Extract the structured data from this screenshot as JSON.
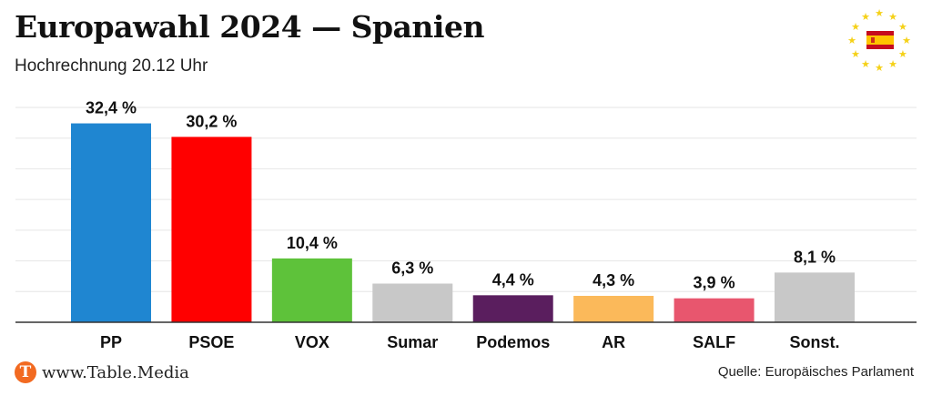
{
  "header": {
    "title": "Europawahl 2024 — Spanien",
    "subtitle": "Hochrechnung 20.12 Uhr"
  },
  "emblem": {
    "icon": "spain-flag-eu-stars-icon"
  },
  "footer": {
    "brand_logo_letter": "T",
    "brand_text": "www.Table.Media",
    "source": "Quelle: Europäisches Parlament"
  },
  "colors": {
    "grid": "#e6e6e6",
    "axis": "#333333",
    "eu_star": "#f5d118",
    "flag_red": "#c60b1e",
    "flag_yellow": "#ffc400",
    "brand": "#f26a21"
  },
  "chart_data": {
    "type": "bar",
    "title": "Europawahl 2024 — Spanien",
    "subtitle": "Hochrechnung 20.12 Uhr",
    "categories": [
      "PP",
      "PSOE",
      "VOX",
      "Sumar",
      "Podemos",
      "AR",
      "SALF",
      "Sonst."
    ],
    "values": [
      32.4,
      30.2,
      10.4,
      6.3,
      4.4,
      4.3,
      3.9,
      8.1
    ],
    "value_labels": [
      "32,4 %",
      "30,2 %",
      "10,4 %",
      "6,3 %",
      "4,4 %",
      "4,3 %",
      "3,9 %",
      "8,1 %"
    ],
    "colors": [
      "#1f86d1",
      "#ff0000",
      "#5ec23a",
      "#c8c8c8",
      "#5a1e5e",
      "#fbb95a",
      "#e8566e",
      "#c8c8c8"
    ],
    "ylim": [
      0,
      35
    ],
    "grid": true,
    "xlabel": "",
    "ylabel": ""
  }
}
